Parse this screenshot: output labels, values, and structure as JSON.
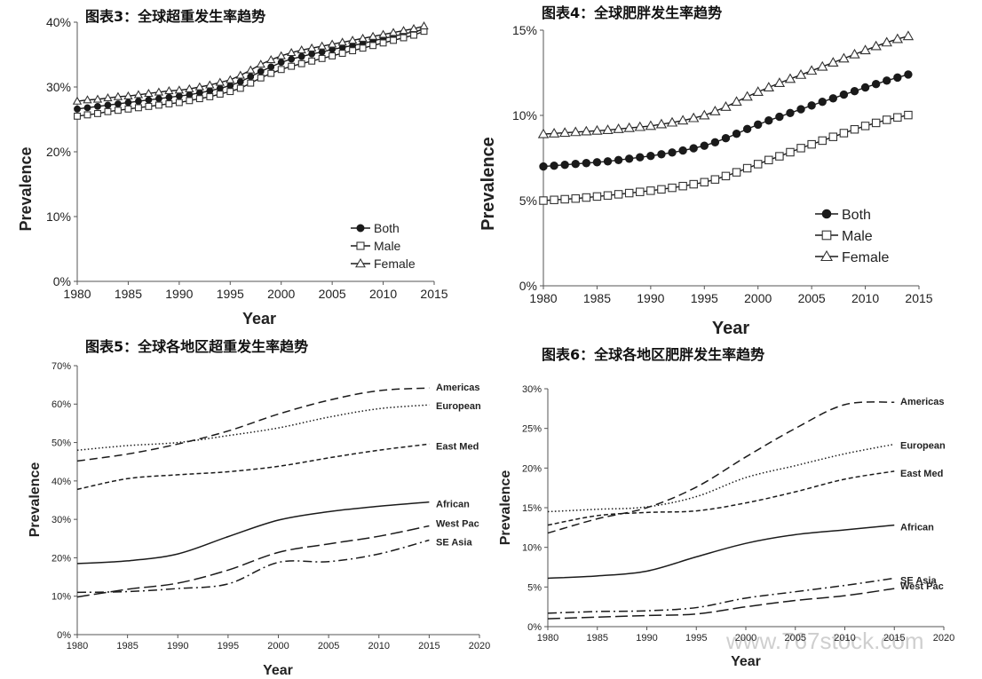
{
  "chart_data": [
    {
      "id": "c3",
      "type": "line",
      "title": "图表3：全球超重发生率趋势",
      "xlabel": "Year",
      "ylabel": "Prevalence",
      "xlim": [
        1980,
        2015
      ],
      "ylim": [
        0,
        40
      ],
      "xticks": [
        "1980",
        "1985",
        "1990",
        "1995",
        "2000",
        "2005",
        "2010",
        "2015"
      ],
      "yticks": [
        "0%",
        "10%",
        "20%",
        "30%",
        "40%"
      ],
      "legend": {
        "placement": "lower-right",
        "font_size": "normal"
      },
      "x": [
        1980,
        1981,
        1982,
        1983,
        1984,
        1985,
        1986,
        1987,
        1988,
        1989,
        1990,
        1991,
        1992,
        1993,
        1994,
        1995,
        1996,
        1997,
        1998,
        1999,
        2000,
        2001,
        2002,
        2003,
        2004,
        2005,
        2006,
        2007,
        2008,
        2009,
        2010,
        2011,
        2012,
        2013,
        2014
      ],
      "series": [
        {
          "name": "Both",
          "marker": "circle",
          "values": [
            26.6,
            26.8,
            27.0,
            27.2,
            27.4,
            27.6,
            27.8,
            28.0,
            28.2,
            28.4,
            28.6,
            28.8,
            29.1,
            29.4,
            29.8,
            30.2,
            30.8,
            31.6,
            32.4,
            33.1,
            33.8,
            34.3,
            34.7,
            35.1,
            35.4,
            35.8,
            36.1,
            36.4,
            36.7,
            37.1,
            37.5,
            37.8,
            38.2,
            38.5,
            38.9
          ]
        },
        {
          "name": "Male",
          "marker": "square",
          "values": [
            25.5,
            25.7,
            25.9,
            26.2,
            26.4,
            26.6,
            26.8,
            27.0,
            27.2,
            27.4,
            27.6,
            27.9,
            28.2,
            28.5,
            28.9,
            29.3,
            29.8,
            30.6,
            31.4,
            32.1,
            32.7,
            33.2,
            33.6,
            34.0,
            34.4,
            34.8,
            35.2,
            35.6,
            36.0,
            36.4,
            36.8,
            37.2,
            37.6,
            38.0,
            38.6
          ]
        },
        {
          "name": "Female",
          "marker": "triangle",
          "values": [
            27.8,
            28.0,
            28.1,
            28.3,
            28.5,
            28.6,
            28.8,
            29.0,
            29.2,
            29.4,
            29.5,
            29.7,
            30.0,
            30.3,
            30.7,
            31.1,
            31.8,
            32.6,
            33.5,
            34.2,
            34.8,
            35.3,
            35.7,
            36.0,
            36.3,
            36.6,
            36.9,
            37.2,
            37.5,
            37.8,
            38.1,
            38.4,
            38.7,
            39.0,
            39.4
          ]
        }
      ]
    },
    {
      "id": "c4",
      "type": "line",
      "title": "图表4：全球肥胖发生率趋势",
      "xlabel": "Year",
      "ylabel": "Prevalence",
      "xlim": [
        1980,
        2015
      ],
      "ylim": [
        0,
        15
      ],
      "xticks": [
        "1980",
        "1985",
        "1990",
        "1995",
        "2000",
        "2005",
        "2010",
        "2015"
      ],
      "yticks": [
        "0%",
        "5%",
        "10%",
        "15%"
      ],
      "legend": {
        "placement": "lower-right",
        "font_size": "large"
      },
      "x": [
        1980,
        1981,
        1982,
        1983,
        1984,
        1985,
        1986,
        1987,
        1988,
        1989,
        1990,
        1991,
        1992,
        1993,
        1994,
        1995,
        1996,
        1997,
        1998,
        1999,
        2000,
        2001,
        2002,
        2003,
        2004,
        2005,
        2006,
        2007,
        2008,
        2009,
        2010,
        2011,
        2012,
        2013,
        2014
      ],
      "series": [
        {
          "name": "Both",
          "marker": "circle",
          "values": [
            7.0,
            7.05,
            7.1,
            7.15,
            7.2,
            7.25,
            7.3,
            7.38,
            7.46,
            7.54,
            7.62,
            7.72,
            7.82,
            7.94,
            8.07,
            8.22,
            8.42,
            8.66,
            8.92,
            9.2,
            9.46,
            9.7,
            9.92,
            10.14,
            10.36,
            10.58,
            10.8,
            11.0,
            11.22,
            11.42,
            11.64,
            11.84,
            12.04,
            12.22,
            12.4
          ]
        },
        {
          "name": "Male",
          "marker": "square",
          "values": [
            5.0,
            5.04,
            5.08,
            5.12,
            5.18,
            5.24,
            5.3,
            5.37,
            5.44,
            5.51,
            5.58,
            5.66,
            5.75,
            5.85,
            5.96,
            6.08,
            6.24,
            6.44,
            6.66,
            6.9,
            7.14,
            7.38,
            7.6,
            7.84,
            8.08,
            8.3,
            8.52,
            8.74,
            8.96,
            9.18,
            9.38,
            9.56,
            9.74,
            9.88,
            10.02
          ]
        },
        {
          "name": "Female",
          "marker": "triangle",
          "values": [
            8.9,
            8.94,
            8.98,
            9.02,
            9.06,
            9.1,
            9.14,
            9.2,
            9.26,
            9.32,
            9.38,
            9.48,
            9.58,
            9.7,
            9.84,
            10.0,
            10.24,
            10.5,
            10.8,
            11.1,
            11.38,
            11.64,
            11.9,
            12.14,
            12.38,
            12.62,
            12.86,
            13.1,
            13.34,
            13.58,
            13.82,
            14.06,
            14.28,
            14.48,
            14.65
          ]
        }
      ]
    },
    {
      "id": "c5",
      "type": "line",
      "title": "图表5：全球各地区超重发生率趋势",
      "xlabel": "Year",
      "ylabel": "Prevalence",
      "xlim": [
        1980,
        2020
      ],
      "ylim": [
        0,
        70
      ],
      "xticks": [
        "1980",
        "1985",
        "1990",
        "1995",
        "2000",
        "2005",
        "2010",
        "2015",
        "2020"
      ],
      "yticks": [
        "0%",
        "10%",
        "20%",
        "30%",
        "40%",
        "50%",
        "60%",
        "70%"
      ],
      "x": [
        1980,
        1985,
        1990,
        1995,
        2000,
        2005,
        2010,
        2015
      ],
      "series": [
        {
          "name": "Americas",
          "dash": "dashed",
          "values": [
            45.2,
            47.0,
            49.6,
            53.0,
            57.4,
            61.0,
            63.5,
            64.2
          ]
        },
        {
          "name": "European",
          "dash": "dotted",
          "values": [
            48.0,
            49.2,
            50.0,
            51.8,
            53.8,
            56.6,
            58.8,
            59.8
          ]
        },
        {
          "name": "East Med",
          "dash": "short-dash",
          "values": [
            37.8,
            40.6,
            41.6,
            42.4,
            43.8,
            46.0,
            48.0,
            49.6
          ]
        },
        {
          "name": "African",
          "dash": "solid",
          "values": [
            18.5,
            19.2,
            21.0,
            25.5,
            29.8,
            32.0,
            33.4,
            34.5
          ]
        },
        {
          "name": "West Pac",
          "dash": "long-dash",
          "values": [
            9.8,
            11.8,
            13.4,
            16.8,
            21.4,
            23.6,
            25.6,
            28.3
          ]
        },
        {
          "name": "SE Asia",
          "dash": "dash-dot",
          "values": [
            11.0,
            11.2,
            12.0,
            13.2,
            18.8,
            19.0,
            21.0,
            24.6
          ]
        }
      ]
    },
    {
      "id": "c6",
      "type": "line",
      "title": "图表6：全球各地区肥胖发生率趋势",
      "xlabel": "Year",
      "ylabel": "Prevalence",
      "xlim": [
        1980,
        2020
      ],
      "ylim": [
        0,
        30
      ],
      "xticks": [
        "1980",
        "1985",
        "1990",
        "1995",
        "2000",
        "2005",
        "2010",
        "2015",
        "2020"
      ],
      "yticks": [
        "0%",
        "5%",
        "10%",
        "15%",
        "20%",
        "25%",
        "30%"
      ],
      "x": [
        1980,
        1985,
        1990,
        1995,
        2000,
        2005,
        2010,
        2015
      ],
      "series": [
        {
          "name": "Americas",
          "dash": "dashed",
          "values": [
            11.8,
            13.6,
            15.0,
            17.6,
            21.4,
            25.0,
            28.0,
            28.3
          ]
        },
        {
          "name": "European",
          "dash": "dotted",
          "values": [
            14.5,
            14.8,
            15.1,
            16.4,
            18.8,
            20.3,
            21.8,
            23.0
          ]
        },
        {
          "name": "East Med",
          "dash": "short-dash",
          "values": [
            12.8,
            14.0,
            14.4,
            14.6,
            15.6,
            17.0,
            18.6,
            19.6
          ]
        },
        {
          "name": "African",
          "dash": "solid",
          "values": [
            6.1,
            6.4,
            7.0,
            8.8,
            10.5,
            11.6,
            12.2,
            12.8
          ]
        },
        {
          "name": "SE Asia",
          "dash": "dash-dot",
          "values": [
            1.7,
            1.9,
            2.0,
            2.4,
            3.6,
            4.4,
            5.2,
            6.1
          ]
        },
        {
          "name": "West Pac",
          "dash": "long-dash",
          "values": [
            1.0,
            1.2,
            1.4,
            1.6,
            2.5,
            3.3,
            3.9,
            4.8
          ]
        }
      ]
    }
  ],
  "watermark": "www.767stock.com"
}
